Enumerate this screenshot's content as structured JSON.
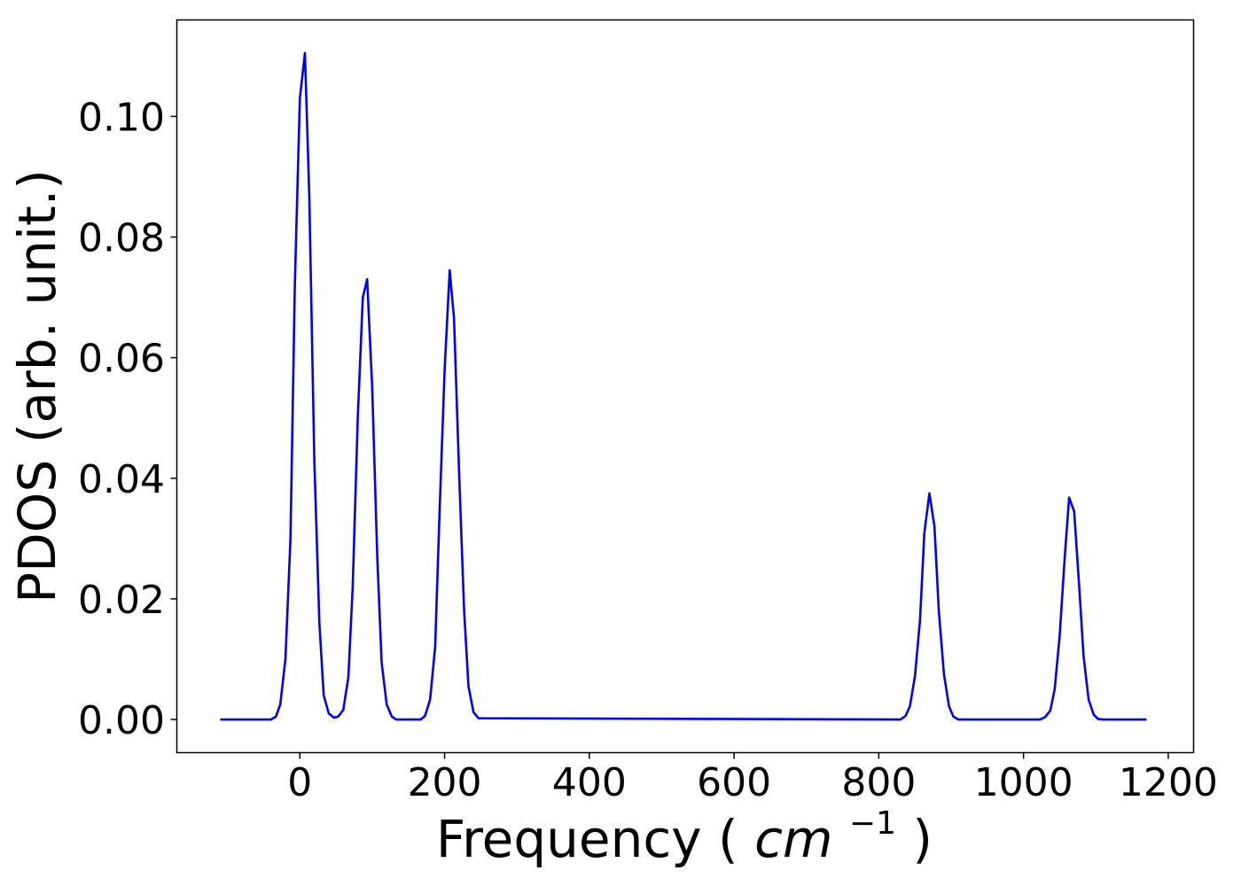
{
  "chart_data": {
    "type": "line",
    "title": "",
    "xlabel": "Frequency",
    "xlabel_unit_base": "cm",
    "xlabel_unit_exp": "−1",
    "ylabel": "PDOS (arb. unit.)",
    "xlim": [
      -170,
      1235
    ],
    "ylim": [
      -0.0055,
      0.116
    ],
    "xticks": [
      0,
      200,
      400,
      600,
      800,
      1000,
      1200
    ],
    "xtick_labels": [
      "0",
      "200",
      "400",
      "600",
      "800",
      "1000",
      "1200"
    ],
    "yticks": [
      0.0,
      0.02,
      0.04,
      0.06,
      0.08,
      0.1
    ],
    "ytick_labels": [
      "0.00",
      "0.02",
      "0.04",
      "0.06",
      "0.08",
      "0.10"
    ],
    "grid": false,
    "legend": "none",
    "series": [
      {
        "color": "#0000ff",
        "x": [
          -110,
          -40,
          -33,
          -27,
          -20,
          -13,
          -7,
          0,
          7,
          13,
          20,
          27,
          33,
          40,
          47,
          53,
          60,
          67,
          73,
          80,
          87,
          93,
          100,
          107,
          113,
          120,
          127,
          133,
          167,
          173,
          180,
          187,
          193,
          200,
          207,
          213,
          220,
          227,
          233,
          240,
          247,
          830,
          837,
          843,
          850,
          857,
          863,
          870,
          877,
          883,
          890,
          897,
          903,
          910,
          1023,
          1030,
          1037,
          1043,
          1050,
          1057,
          1063,
          1070,
          1077,
          1083,
          1090,
          1097,
          1103,
          1110,
          1170
        ],
        "y": [
          0.0,
          0.0,
          0.0005,
          0.0025,
          0.01,
          0.03,
          0.072,
          0.103,
          0.1105,
          0.087,
          0.043,
          0.016,
          0.004,
          0.001,
          0.0003,
          0.0005,
          0.0016,
          0.007,
          0.022,
          0.05,
          0.07,
          0.073,
          0.055,
          0.027,
          0.0095,
          0.0025,
          0.0005,
          0.0,
          0.0,
          0.0006,
          0.0033,
          0.012,
          0.034,
          0.058,
          0.0745,
          0.0665,
          0.041,
          0.018,
          0.0055,
          0.0012,
          0.0002,
          0.0,
          0.0006,
          0.0022,
          0.0072,
          0.0165,
          0.031,
          0.0375,
          0.032,
          0.018,
          0.0075,
          0.0022,
          0.0005,
          0.0,
          0.0,
          0.0004,
          0.0015,
          0.005,
          0.014,
          0.027,
          0.0368,
          0.0345,
          0.022,
          0.0105,
          0.0033,
          0.0008,
          0.0001,
          0.0,
          0.0
        ]
      }
    ]
  }
}
